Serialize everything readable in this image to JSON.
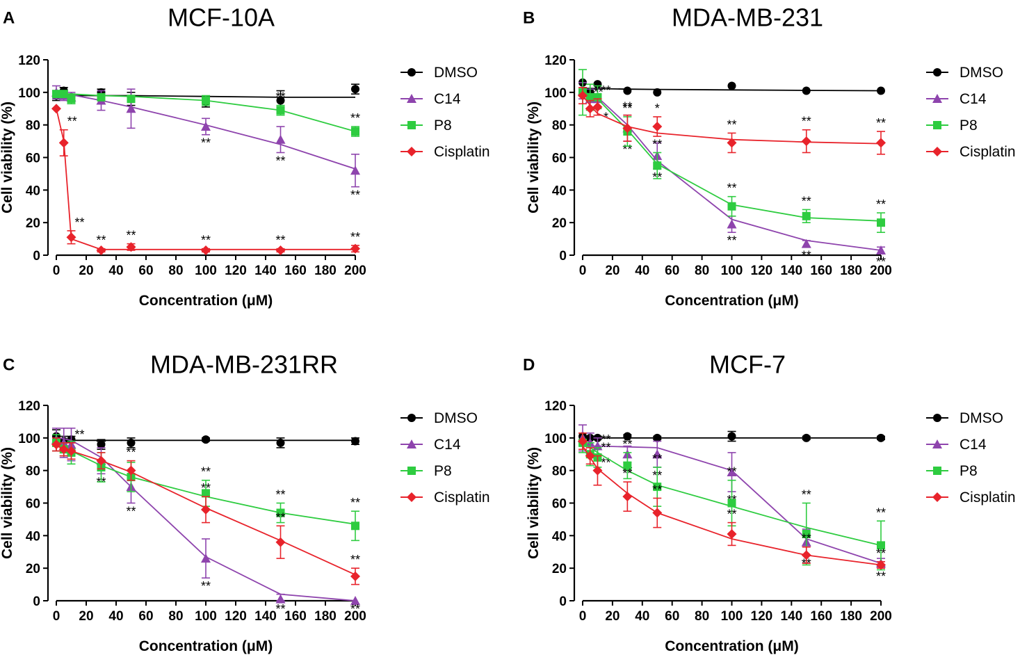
{
  "figure": {
    "legend": [
      {
        "name": "DMSO",
        "color": "#000000",
        "marker": "circle"
      },
      {
        "name": "C14",
        "color": "#8e44ad",
        "marker": "triangle"
      },
      {
        "name": "P8",
        "color": "#2ecc40",
        "marker": "square"
      },
      {
        "name": "Cisplatin",
        "color": "#e8232b",
        "marker": "diamond"
      }
    ]
  },
  "chart_data": [
    {
      "type": "line",
      "letter": "A",
      "title": "MCF-10A",
      "xlabel": "Concentration (μM)",
      "ylabel": "Cell viability (%)",
      "xlim": [
        0,
        200
      ],
      "ylim": [
        0,
        120
      ],
      "xticks": [
        0,
        20,
        40,
        60,
        80,
        100,
        120,
        140,
        160,
        180,
        200
      ],
      "yticks": [
        0,
        20,
        40,
        60,
        80,
        100,
        120
      ],
      "x": [
        0,
        5,
        10,
        30,
        50,
        100,
        150,
        200
      ],
      "series": [
        {
          "name": "DMSO",
          "values": [
            98,
            101,
            97,
            100,
            96,
            94,
            95,
            102
          ],
          "errors": [
            3,
            2,
            2,
            2,
            4,
            3,
            6,
            3
          ],
          "fit": [
            98,
            98,
            98,
            98,
            98,
            97.5,
            97,
            97
          ],
          "sig": [
            "",
            "",
            "",
            "",
            "",
            "",
            "",
            ""
          ]
        },
        {
          "name": "C14",
          "values": [
            100,
            98,
            97,
            95,
            90,
            79,
            71,
            52
          ],
          "errors": [
            4,
            3,
            3,
            6,
            12,
            5,
            8,
            10
          ],
          "fit": [
            99.5,
            99,
            98.5,
            95,
            91,
            80,
            68,
            53
          ],
          "sig": [
            "",
            "",
            "",
            "",
            "",
            "**",
            "**",
            "**"
          ]
        },
        {
          "name": "P8",
          "values": [
            99,
            99,
            96,
            97,
            96,
            95,
            89,
            76
          ],
          "errors": [
            2,
            2,
            3,
            2,
            2,
            3,
            3,
            3
          ],
          "fit": [
            99,
            99,
            99,
            98,
            97.5,
            95,
            89,
            76
          ],
          "sig": [
            "",
            "",
            "",
            "",
            "",
            "",
            "**",
            "**"
          ]
        },
        {
          "name": "Cisplatin",
          "values": [
            90,
            69,
            11,
            3,
            5,
            3,
            3,
            4
          ],
          "errors": [
            0,
            8,
            4,
            1,
            2,
            1,
            1,
            2
          ],
          "fit": [
            90,
            70,
            10,
            3.5,
            3.5,
            3.5,
            3.5,
            3.5
          ],
          "sig": [
            "",
            "**",
            "**",
            "**",
            "**",
            "**",
            "**",
            "**"
          ]
        }
      ]
    },
    {
      "type": "line",
      "letter": "B",
      "title": "MDA-MB-231",
      "xlabel": "Concentration (μM)",
      "ylabel": "Cell viability (%)",
      "xlim": [
        0,
        200
      ],
      "ylim": [
        0,
        120
      ],
      "xticks": [
        0,
        20,
        40,
        60,
        80,
        100,
        120,
        140,
        160,
        180,
        200
      ],
      "yticks": [
        0,
        20,
        40,
        60,
        80,
        100,
        120
      ],
      "x": [
        0,
        5,
        10,
        30,
        50,
        100,
        150,
        200
      ],
      "series": [
        {
          "name": "DMSO",
          "values": [
            106,
            100,
            105,
            101,
            100,
            104,
            101,
            101
          ],
          "errors": [
            0,
            0,
            0,
            0,
            0,
            0,
            0,
            0
          ],
          "fit": [
            102.5,
            102.4,
            102.3,
            102,
            101.8,
            101.5,
            101.2,
            101
          ],
          "sig": [
            "",
            "",
            "",
            "",
            "",
            "",
            "",
            ""
          ]
        },
        {
          "name": "C14",
          "values": [
            101,
            96,
            96,
            78,
            61,
            19,
            7,
            3
          ],
          "errors": [
            5,
            6,
            6,
            8,
            8,
            5,
            2,
            2
          ],
          "fit": [
            100,
            99,
            97,
            80,
            58,
            22,
            9,
            3
          ],
          "sig": [
            "",
            "",
            "*",
            "**",
            "**",
            "**",
            "**",
            "**"
          ]
        },
        {
          "name": "P8",
          "values": [
            100,
            97,
            97,
            76,
            55,
            30,
            24,
            20
          ],
          "errors": [
            14,
            8,
            7,
            9,
            8,
            6,
            4,
            6
          ],
          "fit": [
            99.5,
            98.5,
            96,
            77,
            56,
            31,
            23,
            21
          ],
          "sig": [
            "",
            "",
            "",
            "**",
            "**",
            "**",
            "**",
            "**"
          ]
        },
        {
          "name": "Cisplatin",
          "values": [
            98,
            90,
            91,
            78,
            79,
            69,
            70,
            69
          ],
          "errors": [
            5,
            5,
            5,
            8,
            6,
            6,
            7,
            7
          ],
          "fit": [
            98,
            92,
            87,
            79,
            75,
            71,
            69.5,
            68.5
          ],
          "sig": [
            "",
            "**",
            "**",
            "**",
            "*",
            "**",
            "**",
            "**"
          ]
        }
      ]
    },
    {
      "type": "line",
      "letter": "C",
      "title": "MDA-MB-231RR",
      "xlabel": "Concentration (μM)",
      "ylabel": "Cell viability (%)",
      "xlim": [
        0,
        200
      ],
      "ylim": [
        0,
        120
      ],
      "xticks": [
        0,
        20,
        40,
        60,
        80,
        100,
        120,
        140,
        160,
        180,
        200
      ],
      "yticks": [
        0,
        20,
        40,
        60,
        80,
        100,
        120
      ],
      "x": [
        0,
        5,
        10,
        30,
        50,
        100,
        150,
        200
      ],
      "series": [
        {
          "name": "DMSO",
          "values": [
            101,
            98,
            99,
            96,
            97,
            99,
            97,
            98
          ],
          "errors": [
            4,
            3,
            2,
            3,
            3,
            1,
            3,
            2
          ],
          "fit": [
            98.5,
            98.5,
            98.5,
            98.5,
            98.5,
            98.5,
            98.5,
            98.5
          ],
          "sig": [
            "",
            "",
            "",
            "",
            "",
            "",
            "",
            ""
          ]
        },
        {
          "name": "C14",
          "values": [
            99,
            97,
            96,
            86,
            70,
            26,
            1,
            0
          ],
          "errors": [
            7,
            9,
            10,
            8,
            10,
            12,
            3,
            0
          ],
          "fit": [
            100,
            99.5,
            98.5,
            88,
            70,
            27,
            4,
            0
          ],
          "sig": [
            "",
            "",
            "",
            "**",
            "**",
            "**",
            "**",
            "**"
          ]
        },
        {
          "name": "P8",
          "values": [
            97,
            93,
            91,
            82,
            76,
            66,
            54,
            46
          ],
          "errors": [
            5,
            4,
            7,
            9,
            9,
            8,
            6,
            9
          ],
          "fit": [
            97,
            95,
            92,
            83,
            76,
            64,
            54,
            47
          ],
          "sig": [
            "",
            "",
            "",
            "**",
            "",
            "**",
            "**",
            "**"
          ]
        },
        {
          "name": "Cisplatin",
          "values": [
            96,
            93,
            92,
            86,
            80,
            56,
            36,
            15
          ],
          "errors": [
            4,
            4,
            5,
            5,
            6,
            8,
            10,
            5
          ],
          "fit": [
            95,
            93.5,
            92,
            86,
            79,
            57,
            37,
            16
          ],
          "sig": [
            "",
            "",
            "**",
            "**",
            "**",
            "**",
            "**",
            "**"
          ]
        }
      ]
    },
    {
      "type": "line",
      "letter": "D",
      "title": "MCF-7",
      "xlabel": "Concentration (μM)",
      "ylabel": "Cell viability (%)",
      "xlim": [
        0,
        200
      ],
      "ylim": [
        0,
        120
      ],
      "xticks": [
        0,
        20,
        40,
        60,
        80,
        100,
        120,
        140,
        160,
        180,
        200
      ],
      "yticks": [
        0,
        20,
        40,
        60,
        80,
        100,
        120
      ],
      "x": [
        0,
        5,
        10,
        30,
        50,
        100,
        150,
        200
      ],
      "series": [
        {
          "name": "DMSO",
          "values": [
            101,
            100,
            100,
            101,
            100,
            101,
            100,
            100
          ],
          "errors": [
            2,
            1,
            1,
            1,
            1,
            3,
            1,
            1
          ],
          "fit": [
            100,
            100,
            100,
            100,
            100,
            100,
            100,
            100
          ],
          "sig": [
            "",
            "",
            "",
            "",
            "",
            "",
            "",
            ""
          ]
        },
        {
          "name": "C14",
          "values": [
            100,
            97,
            95,
            90,
            90,
            79,
            36,
            23
          ],
          "errors": [
            8,
            6,
            5,
            5,
            8,
            12,
            8,
            3
          ],
          "fit": [
            96,
            95,
            95,
            94.5,
            94,
            80,
            38,
            23
          ],
          "sig": [
            "",
            "",
            "**",
            "**",
            "**",
            "**",
            "**",
            "**"
          ]
        },
        {
          "name": "P8",
          "values": [
            97,
            90,
            88,
            83,
            70,
            60,
            41,
            34
          ],
          "errors": [
            6,
            7,
            6,
            8,
            12,
            14,
            19,
            15
          ],
          "fit": [
            97,
            94,
            91,
            80,
            71,
            58,
            45,
            34
          ],
          "sig": [
            "",
            "",
            "**",
            "**",
            "**",
            "**",
            "**",
            "**"
          ]
        },
        {
          "name": "Cisplatin",
          "values": [
            98,
            89,
            80,
            64,
            54,
            41,
            28,
            22
          ],
          "errors": [
            5,
            5,
            9,
            9,
            9,
            7,
            5,
            2
          ],
          "fit": [
            95,
            88,
            81,
            66,
            54,
            38,
            28,
            22
          ],
          "sig": [
            "",
            "",
            "**",
            "**",
            "**",
            "**",
            "**",
            "**"
          ]
        }
      ]
    }
  ]
}
